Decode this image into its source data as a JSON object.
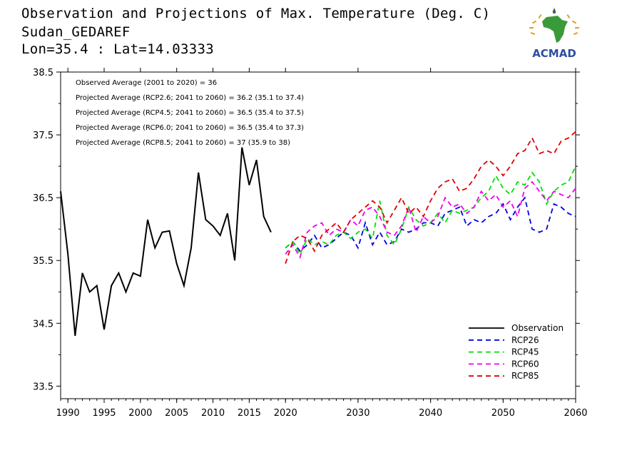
{
  "title": {
    "line1": "Observation and Projections of Max. Temperature (Deg. C)",
    "line2": "Sudan_GEDAREF",
    "line3": "Lon=35.4 : Lat=14.03333"
  },
  "logo": {
    "text": "ACMAD"
  },
  "colors": {
    "Observation": "#000000",
    "RCP26": "#0000e0",
    "RCP45": "#00e000",
    "RCP60": "#ee00ee",
    "RCP85": "#e00000"
  },
  "chart_data": {
    "type": "line",
    "xlim": [
      1989,
      2060
    ],
    "ylim": [
      33.3,
      38.5
    ],
    "xticks": [
      1990,
      1995,
      2000,
      2005,
      2010,
      2015,
      2020,
      2030,
      2040,
      2050,
      2060
    ],
    "yticks": [
      33.5,
      34.5,
      35.5,
      36.5,
      37.5,
      38.5
    ],
    "ytick_labels": [
      "33.5",
      "34.5",
      "35.5",
      "36.5",
      "37.5",
      "38.5"
    ],
    "annotations": [
      "Observed Average (2001 to 2020) = 36",
      "Projected Average (RCP2.6; 2041 to 2060) = 36.2 (35.1 to 37.4)",
      "Projected Average (RCP4.5; 2041 to 2060) = 36.5 (35.4 to 37.5)",
      "Projected Average (RCP6.0; 2041 to 2060) = 36.5 (35.4 to 37.3)",
      "Projected Average (RCP8.5; 2041 to 2060) = 37 (35.9 to 38)"
    ],
    "legend_position": "bottom-right",
    "series": [
      {
        "name": "Observation",
        "style": "solid",
        "x": [
          1989,
          1990,
          1991,
          1992,
          1993,
          1994,
          1995,
          1996,
          1997,
          1998,
          1999,
          2000,
          2001,
          2002,
          2003,
          2004,
          2005,
          2006,
          2007,
          2008,
          2009,
          2010,
          2011,
          2012,
          2013,
          2014,
          2015,
          2016,
          2017,
          2018,
          2019
        ],
        "y": [
          36.6,
          35.6,
          34.3,
          35.3,
          35.0,
          35.1,
          34.4,
          35.1,
          35.3,
          35.0,
          35.3,
          35.25,
          36.15,
          35.7,
          35.95,
          35.97,
          35.45,
          35.1,
          35.7,
          36.9,
          36.15,
          36.05,
          35.9,
          36.25,
          35.5,
          37.3,
          36.7,
          37.1,
          36.2,
          35.95,
          null
        ]
      },
      {
        "name": "RCP26",
        "style": "dashed",
        "x": [
          2020,
          2021,
          2022,
          2023,
          2024,
          2025,
          2026,
          2027,
          2028,
          2029,
          2030,
          2031,
          2032,
          2033,
          2034,
          2035,
          2036,
          2037,
          2038,
          2039,
          2040,
          2041,
          2042,
          2043,
          2044,
          2045,
          2046,
          2047,
          2048,
          2049,
          2050,
          2051,
          2052,
          2053,
          2054,
          2055,
          2056,
          2057,
          2058,
          2059,
          2060
        ],
        "y": [
          35.7,
          35.8,
          35.65,
          35.75,
          35.9,
          35.7,
          35.75,
          35.85,
          35.95,
          35.9,
          35.7,
          36.1,
          35.75,
          35.95,
          35.75,
          35.8,
          36.0,
          35.95,
          36.0,
          36.1,
          36.1,
          36.05,
          36.25,
          36.3,
          36.35,
          36.05,
          36.15,
          36.1,
          36.2,
          36.25,
          36.4,
          36.15,
          36.35,
          36.5,
          36.0,
          35.95,
          36.0,
          36.4,
          36.35,
          36.25,
          36.2
        ]
      },
      {
        "name": "RCP45",
        "style": "dashed",
        "x": [
          2020,
          2021,
          2022,
          2023,
          2024,
          2025,
          2026,
          2027,
          2028,
          2029,
          2030,
          2031,
          2032,
          2033,
          2034,
          2035,
          2036,
          2037,
          2038,
          2039,
          2040,
          2041,
          2042,
          2043,
          2044,
          2045,
          2046,
          2047,
          2048,
          2049,
          2050,
          2051,
          2052,
          2053,
          2054,
          2055,
          2056,
          2057,
          2058,
          2059,
          2060
        ],
        "y": [
          35.7,
          35.8,
          35.6,
          35.85,
          35.75,
          35.8,
          35.75,
          35.9,
          35.95,
          35.85,
          35.95,
          36.0,
          35.85,
          36.45,
          35.9,
          35.75,
          36.0,
          36.35,
          36.15,
          36.05,
          36.1,
          36.25,
          36.1,
          36.3,
          36.25,
          36.3,
          36.35,
          36.5,
          36.6,
          36.85,
          36.65,
          36.55,
          36.75,
          36.7,
          36.9,
          36.75,
          36.4,
          36.6,
          36.7,
          36.75,
          37.0
        ]
      },
      {
        "name": "RCP60",
        "style": "dashed",
        "x": [
          2020,
          2021,
          2022,
          2023,
          2024,
          2025,
          2026,
          2027,
          2028,
          2029,
          2030,
          2031,
          2032,
          2033,
          2034,
          2035,
          2036,
          2037,
          2038,
          2039,
          2040,
          2041,
          2042,
          2043,
          2044,
          2045,
          2046,
          2047,
          2048,
          2049,
          2050,
          2051,
          2052,
          2053,
          2054,
          2055,
          2056,
          2057,
          2058,
          2059,
          2060
        ],
        "y": [
          35.6,
          35.75,
          35.55,
          35.95,
          36.05,
          36.1,
          35.9,
          36.0,
          35.95,
          36.15,
          36.05,
          36.3,
          36.35,
          36.2,
          35.95,
          35.9,
          36.05,
          36.35,
          35.95,
          36.2,
          36.1,
          36.2,
          36.5,
          36.35,
          36.4,
          36.25,
          36.35,
          36.6,
          36.45,
          36.55,
          36.35,
          36.45,
          36.2,
          36.65,
          36.75,
          36.6,
          36.45,
          36.6,
          36.55,
          36.5,
          36.65
        ]
      },
      {
        "name": "RCP85",
        "style": "dashed",
        "x": [
          2020,
          2021,
          2022,
          2023,
          2024,
          2025,
          2026,
          2027,
          2028,
          2029,
          2030,
          2031,
          2032,
          2033,
          2034,
          2035,
          2036,
          2037,
          2038,
          2039,
          2040,
          2041,
          2042,
          2043,
          2044,
          2045,
          2046,
          2047,
          2048,
          2049,
          2050,
          2051,
          2052,
          2053,
          2054,
          2055,
          2056,
          2057,
          2058,
          2059,
          2060
        ],
        "y": [
          35.45,
          35.8,
          35.9,
          35.85,
          35.65,
          35.9,
          36.0,
          36.1,
          35.95,
          36.15,
          36.25,
          36.35,
          36.45,
          36.35,
          36.1,
          36.3,
          36.5,
          36.25,
          36.35,
          36.2,
          36.45,
          36.65,
          36.75,
          36.8,
          36.6,
          36.65,
          36.8,
          37.0,
          37.1,
          37.0,
          36.85,
          37.0,
          37.2,
          37.25,
          37.45,
          37.2,
          37.25,
          37.2,
          37.4,
          37.45,
          37.55
        ]
      }
    ]
  }
}
